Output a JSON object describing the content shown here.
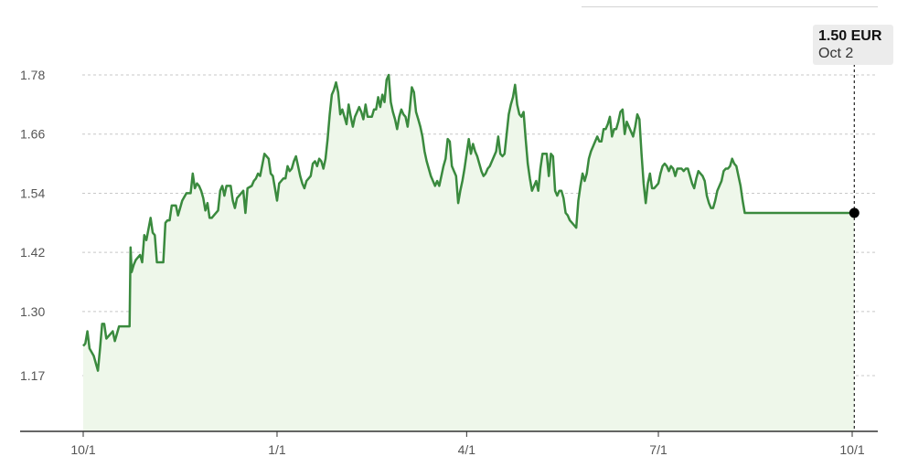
{
  "tooltip": {
    "price": "1.50 EUR",
    "date": "Oct 2"
  },
  "colors": {
    "line": "#3a8a3e",
    "area": "#eef7ea",
    "grid": "#c8c8c8",
    "axis": "#333333"
  },
  "chart_data": {
    "type": "area",
    "title": "",
    "xlabel": "",
    "ylabel": "",
    "ylim": [
      1.06,
      1.86
    ],
    "grid": true,
    "y_ticks": [
      1.17,
      1.3,
      1.42,
      1.54,
      1.66,
      1.78
    ],
    "y_tick_labels": [
      "1.17",
      "1.30",
      "1.42",
      "1.54",
      "1.66",
      "1.78"
    ],
    "x_ticks": [
      "10/1",
      "1/1",
      "4/1",
      "7/1",
      "10/1"
    ],
    "x_tick_positions": [
      0,
      92,
      182,
      273,
      365
    ],
    "highlight": {
      "day": 366,
      "value": 1.5
    },
    "series": [
      {
        "values": [
          [
            0,
            1.23
          ],
          [
            1,
            1.235
          ],
          [
            2,
            1.26
          ],
          [
            3,
            1.225
          ],
          [
            5,
            1.21
          ],
          [
            7,
            1.18
          ],
          [
            8,
            1.225
          ],
          [
            9,
            1.275
          ],
          [
            10,
            1.275
          ],
          [
            11,
            1.245
          ],
          [
            13,
            1.255
          ],
          [
            14,
            1.26
          ],
          [
            15,
            1.24
          ],
          [
            17,
            1.27
          ],
          [
            19,
            1.27
          ],
          [
            22,
            1.27
          ],
          [
            22.5,
            1.43
          ],
          [
            23,
            1.38
          ],
          [
            24,
            1.395
          ],
          [
            25,
            1.405
          ],
          [
            27,
            1.415
          ],
          [
            28,
            1.4
          ],
          [
            29,
            1.455
          ],
          [
            30,
            1.445
          ],
          [
            32,
            1.49
          ],
          [
            33,
            1.46
          ],
          [
            34,
            1.455
          ],
          [
            35,
            1.4
          ],
          [
            38,
            1.4
          ],
          [
            39,
            1.48
          ],
          [
            40,
            1.485
          ],
          [
            41,
            1.485
          ],
          [
            42,
            1.515
          ],
          [
            44,
            1.515
          ],
          [
            45,
            1.495
          ],
          [
            46,
            1.51
          ],
          [
            47,
            1.525
          ],
          [
            49,
            1.54
          ],
          [
            51,
            1.54
          ],
          [
            52,
            1.58
          ],
          [
            53,
            1.55
          ],
          [
            54,
            1.56
          ],
          [
            55,
            1.555
          ],
          [
            56,
            1.545
          ],
          [
            57,
            1.53
          ],
          [
            58,
            1.505
          ],
          [
            59,
            1.52
          ],
          [
            60,
            1.49
          ],
          [
            61,
            1.49
          ],
          [
            62,
            1.495
          ],
          [
            64,
            1.505
          ],
          [
            65,
            1.545
          ],
          [
            66,
            1.555
          ],
          [
            67,
            1.535
          ],
          [
            68,
            1.555
          ],
          [
            70,
            1.555
          ],
          [
            71,
            1.525
          ],
          [
            72,
            1.51
          ],
          [
            73,
            1.53
          ],
          [
            75,
            1.54
          ],
          [
            76,
            1.545
          ],
          [
            77,
            1.5
          ],
          [
            78,
            1.55
          ],
          [
            80,
            1.555
          ],
          [
            81,
            1.565
          ],
          [
            82,
            1.57
          ],
          [
            83,
            1.58
          ],
          [
            84,
            1.575
          ],
          [
            86,
            1.62
          ],
          [
            88,
            1.61
          ],
          [
            89,
            1.58
          ],
          [
            90,
            1.575
          ],
          [
            91,
            1.55
          ],
          [
            92,
            1.525
          ],
          [
            93,
            1.56
          ],
          [
            94,
            1.565
          ],
          [
            95,
            1.57
          ],
          [
            96,
            1.57
          ],
          [
            97,
            1.595
          ],
          [
            98,
            1.585
          ],
          [
            99,
            1.59
          ],
          [
            100,
            1.605
          ],
          [
            101,
            1.615
          ],
          [
            102,
            1.595
          ],
          [
            103,
            1.575
          ],
          [
            104,
            1.56
          ],
          [
            105,
            1.55
          ],
          [
            106,
            1.565
          ],
          [
            107,
            1.57
          ],
          [
            108,
            1.575
          ],
          [
            109,
            1.6
          ],
          [
            110,
            1.605
          ],
          [
            111,
            1.595
          ],
          [
            112,
            1.61
          ],
          [
            113,
            1.605
          ],
          [
            114,
            1.59
          ],
          [
            115,
            1.61
          ],
          [
            116,
            1.65
          ],
          [
            117,
            1.7
          ],
          [
            118,
            1.74
          ],
          [
            119,
            1.75
          ],
          [
            120,
            1.765
          ],
          [
            121,
            1.745
          ],
          [
            122,
            1.7
          ],
          [
            123,
            1.71
          ],
          [
            124,
            1.695
          ],
          [
            125,
            1.68
          ],
          [
            126,
            1.72
          ],
          [
            127,
            1.695
          ],
          [
            128,
            1.675
          ],
          [
            129,
            1.695
          ],
          [
            130,
            1.705
          ],
          [
            131,
            1.715
          ],
          [
            132,
            1.705
          ],
          [
            133,
            1.69
          ],
          [
            134,
            1.72
          ],
          [
            135,
            1.695
          ],
          [
            137,
            1.695
          ],
          [
            138,
            1.71
          ],
          [
            139,
            1.71
          ],
          [
            140,
            1.735
          ],
          [
            141,
            1.715
          ],
          [
            142,
            1.74
          ],
          [
            143,
            1.725
          ],
          [
            144,
            1.77
          ],
          [
            145,
            1.78
          ],
          [
            146,
            1.725
          ],
          [
            147,
            1.705
          ],
          [
            148,
            1.69
          ],
          [
            149,
            1.67
          ],
          [
            150,
            1.695
          ],
          [
            151,
            1.71
          ],
          [
            152,
            1.7
          ],
          [
            153,
            1.695
          ],
          [
            154,
            1.675
          ],
          [
            155,
            1.71
          ],
          [
            156,
            1.755
          ],
          [
            157,
            1.745
          ],
          [
            158,
            1.705
          ],
          [
            159,
            1.69
          ],
          [
            160,
            1.675
          ],
          [
            161,
            1.655
          ],
          [
            162,
            1.625
          ],
          [
            163,
            1.605
          ],
          [
            164,
            1.59
          ],
          [
            165,
            1.575
          ],
          [
            166,
            1.565
          ],
          [
            167,
            1.555
          ],
          [
            168,
            1.565
          ],
          [
            169,
            1.555
          ],
          [
            170,
            1.575
          ],
          [
            171,
            1.595
          ],
          [
            172,
            1.61
          ],
          [
            173,
            1.65
          ],
          [
            174,
            1.645
          ],
          [
            175,
            1.595
          ],
          [
            176,
            1.585
          ],
          [
            177,
            1.575
          ],
          [
            178,
            1.52
          ],
          [
            179,
            1.545
          ],
          [
            180,
            1.565
          ],
          [
            181,
            1.59
          ],
          [
            182,
            1.62
          ],
          [
            183,
            1.65
          ],
          [
            184,
            1.62
          ],
          [
            185,
            1.64
          ],
          [
            186,
            1.625
          ],
          [
            187,
            1.615
          ],
          [
            188,
            1.6
          ],
          [
            189,
            1.585
          ],
          [
            190,
            1.575
          ],
          [
            191,
            1.58
          ],
          [
            192,
            1.59
          ],
          [
            193,
            1.595
          ],
          [
            194,
            1.605
          ],
          [
            195,
            1.615
          ],
          [
            196,
            1.625
          ],
          [
            197,
            1.655
          ],
          [
            198,
            1.62
          ],
          [
            199,
            1.615
          ],
          [
            200,
            1.62
          ],
          [
            201,
            1.66
          ],
          [
            202,
            1.7
          ],
          [
            203,
            1.72
          ],
          [
            204,
            1.735
          ],
          [
            205,
            1.76
          ],
          [
            206,
            1.72
          ],
          [
            207,
            1.7
          ],
          [
            208,
            1.695
          ],
          [
            209,
            1.705
          ],
          [
            210,
            1.65
          ],
          [
            211,
            1.6
          ],
          [
            212,
            1.57
          ],
          [
            213,
            1.545
          ],
          [
            214,
            1.555
          ],
          [
            215,
            1.565
          ],
          [
            216,
            1.545
          ],
          [
            217,
            1.59
          ],
          [
            218,
            1.62
          ],
          [
            219,
            1.62
          ],
          [
            220,
            1.62
          ],
          [
            221,
            1.575
          ],
          [
            222,
            1.62
          ],
          [
            223,
            1.615
          ],
          [
            224,
            1.545
          ],
          [
            225,
            1.535
          ],
          [
            226,
            1.545
          ],
          [
            227,
            1.545
          ],
          [
            228,
            1.53
          ],
          [
            229,
            1.5
          ],
          [
            230,
            1.495
          ],
          [
            231,
            1.485
          ],
          [
            232,
            1.48
          ],
          [
            233,
            1.475
          ],
          [
            234,
            1.47
          ],
          [
            235,
            1.525
          ],
          [
            236,
            1.555
          ],
          [
            237,
            1.58
          ],
          [
            238,
            1.565
          ],
          [
            239,
            1.58
          ],
          [
            240,
            1.61
          ],
          [
            241,
            1.625
          ],
          [
            242,
            1.635
          ],
          [
            243,
            1.645
          ],
          [
            244,
            1.655
          ],
          [
            245,
            1.645
          ],
          [
            246,
            1.645
          ],
          [
            247,
            1.67
          ],
          [
            248,
            1.67
          ],
          [
            249,
            1.68
          ],
          [
            250,
            1.695
          ],
          [
            251,
            1.655
          ],
          [
            252,
            1.67
          ],
          [
            253,
            1.67
          ],
          [
            254,
            1.685
          ],
          [
            255,
            1.705
          ],
          [
            256,
            1.71
          ],
          [
            257,
            1.66
          ],
          [
            258,
            1.685
          ],
          [
            259,
            1.675
          ],
          [
            260,
            1.665
          ],
          [
            261,
            1.655
          ],
          [
            262,
            1.675
          ],
          [
            263,
            1.7
          ],
          [
            264,
            1.69
          ],
          [
            265,
            1.62
          ],
          [
            266,
            1.56
          ],
          [
            267,
            1.52
          ],
          [
            268,
            1.56
          ],
          [
            269,
            1.58
          ],
          [
            270,
            1.55
          ],
          [
            271,
            1.55
          ],
          [
            272,
            1.555
          ],
          [
            273,
            1.56
          ],
          [
            274,
            1.58
          ],
          [
            275,
            1.595
          ],
          [
            276,
            1.6
          ],
          [
            277,
            1.595
          ],
          [
            278,
            1.585
          ],
          [
            279,
            1.595
          ],
          [
            280,
            1.59
          ],
          [
            281,
            1.575
          ],
          [
            282,
            1.59
          ],
          [
            283,
            1.59
          ],
          [
            284,
            1.59
          ],
          [
            285,
            1.585
          ],
          [
            286,
            1.59
          ],
          [
            287,
            1.59
          ],
          [
            288,
            1.575
          ],
          [
            289,
            1.56
          ],
          [
            290,
            1.55
          ],
          [
            291,
            1.57
          ],
          [
            292,
            1.585
          ],
          [
            293,
            1.58
          ],
          [
            294,
            1.575
          ],
          [
            295,
            1.565
          ],
          [
            296,
            1.535
          ],
          [
            297,
            1.52
          ],
          [
            298,
            1.51
          ],
          [
            299,
            1.51
          ],
          [
            300,
            1.525
          ],
          [
            301,
            1.545
          ],
          [
            302,
            1.555
          ],
          [
            303,
            1.565
          ],
          [
            304,
            1.585
          ],
          [
            305,
            1.59
          ],
          [
            306,
            1.59
          ],
          [
            307,
            1.595
          ],
          [
            308,
            1.61
          ],
          [
            309,
            1.6
          ],
          [
            310,
            1.595
          ],
          [
            311,
            1.575
          ],
          [
            312,
            1.555
          ],
          [
            313,
            1.525
          ],
          [
            314,
            1.5
          ]
        ]
      }
    ]
  }
}
